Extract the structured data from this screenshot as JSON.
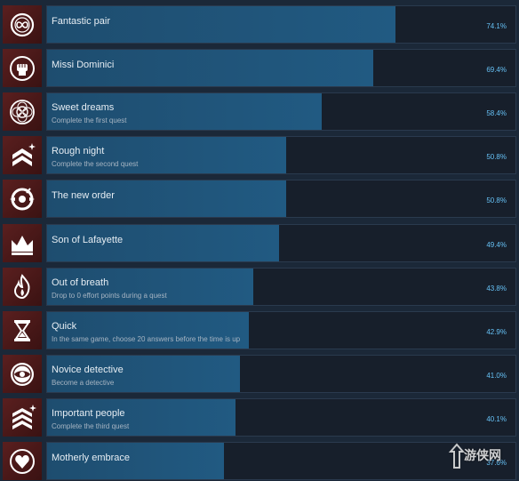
{
  "achievements": [
    {
      "title": "Fantastic pair",
      "description": "",
      "percent_label": "74.1%",
      "percent": 74.1,
      "icon": "infinity-medallion-icon"
    },
    {
      "title": "Missi Dominici",
      "description": "",
      "percent_label": "69.4%",
      "percent": 69.4,
      "icon": "raised-fist-icon"
    },
    {
      "title": "Sweet dreams",
      "description": "Complete the first quest",
      "percent_label": "58.4%",
      "percent": 58.4,
      "icon": "dreamcatcher-icon"
    },
    {
      "title": "Rough night",
      "description": "Complete the second quest",
      "percent_label": "50.8%",
      "percent": 50.8,
      "icon": "double-chevron-rank-icon"
    },
    {
      "title": "The new order",
      "description": "",
      "percent_label": "50.8%",
      "percent": 50.8,
      "icon": "target-ring-icon"
    },
    {
      "title": "Son of Lafayette",
      "description": "",
      "percent_label": "49.4%",
      "percent": 49.4,
      "icon": "crown-icon"
    },
    {
      "title": "Out of breath",
      "description": "Drop to 0 effort points during a quest",
      "percent_label": "43.8%",
      "percent": 43.8,
      "icon": "flame-icon"
    },
    {
      "title": "Quick",
      "description": "In the same game, choose 20 answers before the time is up",
      "percent_label": "42.9%",
      "percent": 42.9,
      "icon": "hourglass-icon"
    },
    {
      "title": "Novice detective",
      "description": "Become a detective",
      "percent_label": "41.0%",
      "percent": 41.0,
      "icon": "eye-seal-icon"
    },
    {
      "title": "Important people",
      "description": "Complete the third quest",
      "percent_label": "40.1%",
      "percent": 40.1,
      "icon": "triple-chevron-rank-icon"
    },
    {
      "title": "Motherly embrace",
      "description": "",
      "percent_label": "37.6%",
      "percent": 37.6,
      "icon": "heart-diamond-icon"
    }
  ],
  "watermark": {
    "text": "游侠网",
    "icon": "site-logo-icon"
  },
  "colors": {
    "background": "#1b2838",
    "bar_fill": "#215a82",
    "bar_track": "#171f2b",
    "icon_bg": "#4a1a1a",
    "percent_text": "#66c0f4"
  }
}
